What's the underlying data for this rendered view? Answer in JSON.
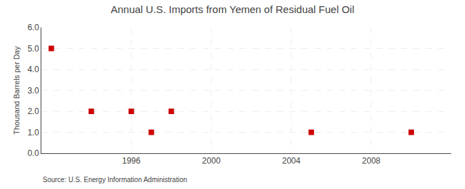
{
  "chart_data": {
    "type": "scatter",
    "title": "Annual U.S. Imports from Yemen of Residual Fuel Oil",
    "y_label": "Thousand Barrels per Day",
    "annotations": [
      "Source: U.S. Energy Information Administration"
    ],
    "x": [
      1992,
      1994,
      1996,
      1997,
      1998,
      2005,
      2010
    ],
    "values": [
      5.0,
      2.0,
      2.0,
      1.0,
      2.0,
      1.0,
      1.0
    ],
    "color": "#cc0000",
    "marker": "square",
    "xlim": [
      1991.5,
      2012
    ],
    "xticks": [
      1996,
      2000,
      2004,
      2008
    ],
    "ylim": [
      0.0,
      6.0
    ],
    "yticks": [
      {
        "value": 0,
        "label": "0.0"
      },
      {
        "value": 1,
        "label": "1.0"
      },
      {
        "value": 2,
        "label": "2.0"
      },
      {
        "value": 3,
        "label": "3.0"
      },
      {
        "value": 4,
        "label": "4.0"
      },
      {
        "value": 5,
        "label": "5.0"
      },
      {
        "value": 6,
        "label": "6.0"
      }
    ],
    "grid": true
  }
}
